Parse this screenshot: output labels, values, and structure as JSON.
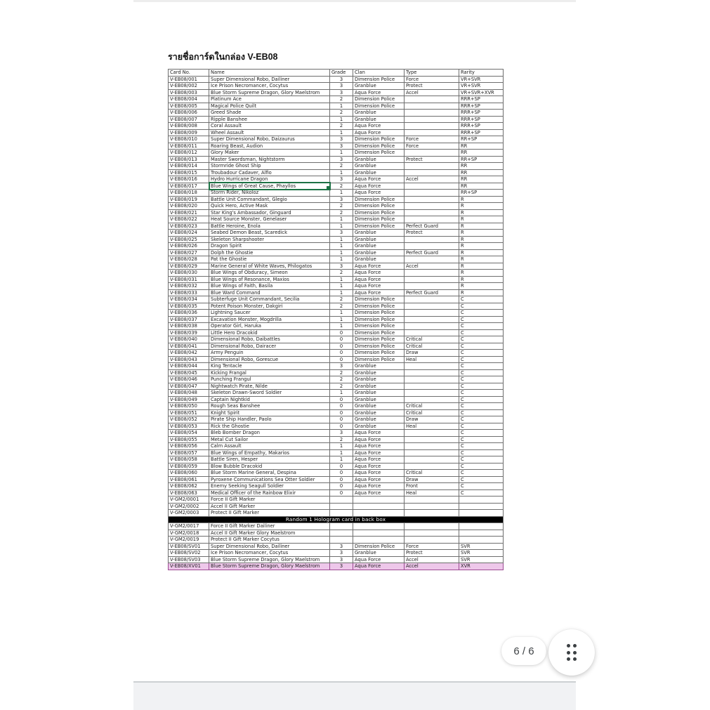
{
  "viewer": {
    "page_indicator": "6 / 6",
    "bottom_gap_color": "#f1f2f4"
  },
  "document": {
    "title": "รายชื่อการ์ดในกล่อง V-EB08",
    "table": {
      "headers": [
        "Card No.",
        "Name",
        "Grade",
        "Clan",
        "Type",
        "Rarity"
      ],
      "selection_color": "#1d7245",
      "highlight_color": "#eec7ea",
      "separator_label": "Random 1 Hologram card in back box",
      "rows": [
        {
          "no": "V-EB08/001",
          "name": "Super Dimensional Robo, Dailiner",
          "grade": "3",
          "clan": "Dimension Police",
          "type": "Force",
          "rarity": "VR+SVR"
        },
        {
          "no": "V-EB08/002",
          "name": "Ice Prison Necromancer, Cocytus",
          "grade": "3",
          "clan": "Granblue",
          "type": "Protect",
          "rarity": "VR+SVR"
        },
        {
          "no": "V-EB08/003",
          "name": "Blue Storm Supreme Dragon, Glory Maelstrom",
          "grade": "3",
          "clan": "Aqua Force",
          "type": "Accel",
          "rarity": "VR+SVR+XVR"
        },
        {
          "no": "V-EB08/004",
          "name": "Platinum Ace",
          "grade": "2",
          "clan": "Dimension Police",
          "type": "",
          "rarity": "RRR+SP"
        },
        {
          "no": "V-EB08/005",
          "name": "Magical Police Quilt",
          "grade": "1",
          "clan": "Dimension Police",
          "type": "",
          "rarity": "RRR+SP"
        },
        {
          "no": "V-EB08/006",
          "name": "Greed Shade",
          "grade": "2",
          "clan": "Granblue",
          "type": "",
          "rarity": "RRR+SP"
        },
        {
          "no": "V-EB08/007",
          "name": "Ripple Banshee",
          "grade": "1",
          "clan": "Granblue",
          "type": "",
          "rarity": "RRR+SP"
        },
        {
          "no": "V-EB08/008",
          "name": "Coral Assault",
          "grade": "2",
          "clan": "Aqua Force",
          "type": "",
          "rarity": "RRR+SP"
        },
        {
          "no": "V-EB08/009",
          "name": "Wheel Assault",
          "grade": "1",
          "clan": "Aqua Force",
          "type": "",
          "rarity": "RRR+SP"
        },
        {
          "no": "V-EB08/010",
          "name": "Super Dimensional Robo, Daizaurus",
          "grade": "3",
          "clan": "Dimension Police",
          "type": "Force",
          "rarity": "RR+SP"
        },
        {
          "no": "V-EB08/011",
          "name": "Roaring Beast, Audion",
          "grade": "3",
          "clan": "Dimension Police",
          "type": "Force",
          "rarity": "RR"
        },
        {
          "no": "V-EB08/012",
          "name": "Glory Maker",
          "grade": "1",
          "clan": "Dimension Police",
          "type": "",
          "rarity": "RR"
        },
        {
          "no": "V-EB08/013",
          "name": "Master Swordsman, Nightstorm",
          "grade": "3",
          "clan": "Granblue",
          "type": "Protect",
          "rarity": "RR+SP"
        },
        {
          "no": "V-EB08/014",
          "name": "Stormride Ghost Ship",
          "grade": "2",
          "clan": "Granblue",
          "type": "",
          "rarity": "RR"
        },
        {
          "no": "V-EB08/015",
          "name": "Troubadour Cadaver, Alfio",
          "grade": "1",
          "clan": "Granblue",
          "type": "",
          "rarity": "RR"
        },
        {
          "no": "V-EB08/016",
          "name": "Hydro Hurricane Dragon",
          "grade": "3",
          "clan": "Aqua Force",
          "type": "Accel",
          "rarity": "RR"
        },
        {
          "no": "V-EB08/017",
          "name": "Blue Wings of Great Cause, Phayllos",
          "grade": "2",
          "clan": "Aqua Force",
          "type": "",
          "rarity": "RR",
          "selected": true
        },
        {
          "no": "V-EB08/018",
          "name": "Storm Rider, Nikoloz",
          "grade": "1",
          "clan": "Aqua Force",
          "type": "",
          "rarity": "RR+SP"
        },
        {
          "no": "V-EB08/019",
          "name": "Battle Unit Commandant, Glegio",
          "grade": "3",
          "clan": "Dimension Police",
          "type": "",
          "rarity": "R"
        },
        {
          "no": "V-EB08/020",
          "name": "Quick Hero, Active Mask",
          "grade": "2",
          "clan": "Dimension Police",
          "type": "",
          "rarity": "R"
        },
        {
          "no": "V-EB08/021",
          "name": "Star King's Ambassador, Ginguard",
          "grade": "2",
          "clan": "Dimension Police",
          "type": "",
          "rarity": "R"
        },
        {
          "no": "V-EB08/022",
          "name": "Heat Source Monster, Genelaser",
          "grade": "1",
          "clan": "Dimension Police",
          "type": "",
          "rarity": "R"
        },
        {
          "no": "V-EB08/023",
          "name": "Battle Heroine, Enola",
          "grade": "1",
          "clan": "Dimension Police",
          "type": "Perfect Guard",
          "rarity": "R"
        },
        {
          "no": "V-EB08/024",
          "name": "Seabed Demon Beast, Scaredick",
          "grade": "3",
          "clan": "Granblue",
          "type": "Protect",
          "rarity": "R"
        },
        {
          "no": "V-EB08/025",
          "name": "Skeleton Sharpshooter",
          "grade": "1",
          "clan": "Granblue",
          "type": "",
          "rarity": "R"
        },
        {
          "no": "V-EB08/026",
          "name": "Dragon Spirit",
          "grade": "1",
          "clan": "Granblue",
          "type": "",
          "rarity": "R"
        },
        {
          "no": "V-EB08/027",
          "name": "Dolph the Ghostie",
          "grade": "1",
          "clan": "Granblue",
          "type": "Perfect Guard",
          "rarity": "R"
        },
        {
          "no": "V-EB08/028",
          "name": "Pat the Ghostie",
          "grade": "1",
          "clan": "Granblue",
          "type": "",
          "rarity": "R"
        },
        {
          "no": "V-EB08/029",
          "name": "Marine General of White Waves, Philogatos",
          "grade": "3",
          "clan": "Aqua Force",
          "type": "Accel",
          "rarity": "R"
        },
        {
          "no": "V-EB08/030",
          "name": "Blue Wings of Obduracy, Simeon",
          "grade": "2",
          "clan": "Aqua Force",
          "type": "",
          "rarity": "R"
        },
        {
          "no": "V-EB08/031",
          "name": "Blue Wings of Resonance, Maxios",
          "grade": "1",
          "clan": "Aqua Force",
          "type": "",
          "rarity": "R"
        },
        {
          "no": "V-EB08/032",
          "name": "Blue Wings of Faith, Basila",
          "grade": "1",
          "clan": "Aqua Force",
          "type": "",
          "rarity": "R"
        },
        {
          "no": "V-EB08/033",
          "name": "Blue Ward Command",
          "grade": "1",
          "clan": "Aqua Force",
          "type": "Perfect Guard",
          "rarity": "R"
        },
        {
          "no": "V-EB08/034",
          "name": "Subterfuge Unit Commandant, Secilia",
          "grade": "2",
          "clan": "Dimension Police",
          "type": "",
          "rarity": "C"
        },
        {
          "no": "V-EB08/035",
          "name": "Potent Poison Monster, Dakgiri",
          "grade": "2",
          "clan": "Dimension Police",
          "type": "",
          "rarity": "C"
        },
        {
          "no": "V-EB08/036",
          "name": "Lightning Saucer",
          "grade": "1",
          "clan": "Dimension Police",
          "type": "",
          "rarity": "C"
        },
        {
          "no": "V-EB08/037",
          "name": "Excavation Monster, Mogdrilla",
          "grade": "1",
          "clan": "Dimension Police",
          "type": "",
          "rarity": "C"
        },
        {
          "no": "V-EB08/038",
          "name": "Operator Girl, Haruka",
          "grade": "1",
          "clan": "Dimension Police",
          "type": "",
          "rarity": "C"
        },
        {
          "no": "V-EB08/039",
          "name": "Little Hero Dracokid",
          "grade": "0",
          "clan": "Dimension Police",
          "type": "",
          "rarity": "C"
        },
        {
          "no": "V-EB08/040",
          "name": "Dimensional Robo, Daibattles",
          "grade": "0",
          "clan": "Dimension Police",
          "type": "Critical",
          "rarity": "C"
        },
        {
          "no": "V-EB08/041",
          "name": "Dimensional Robo, Dairacer",
          "grade": "0",
          "clan": "Dimension Police",
          "type": "Critical",
          "rarity": "C"
        },
        {
          "no": "V-EB08/042",
          "name": "Army Penguin",
          "grade": "0",
          "clan": "Dimension Police",
          "type": "Draw",
          "rarity": "C"
        },
        {
          "no": "V-EB08/043",
          "name": "Dimensional Robo, Gorescue",
          "grade": "0",
          "clan": "Dimension Police",
          "type": "Heal",
          "rarity": "C"
        },
        {
          "no": "V-EB08/044",
          "name": "King Tentacle",
          "grade": "3",
          "clan": "Granblue",
          "type": "",
          "rarity": "C"
        },
        {
          "no": "V-EB08/045",
          "name": "Kicking Frangal",
          "grade": "2",
          "clan": "Granblue",
          "type": "",
          "rarity": "C"
        },
        {
          "no": "V-EB08/046",
          "name": "Punching Frangul",
          "grade": "2",
          "clan": "Granblue",
          "type": "",
          "rarity": "C"
        },
        {
          "no": "V-EB08/047",
          "name": "Nightwatch Pirate, Nilde",
          "grade": "2",
          "clan": "Granblue",
          "type": "",
          "rarity": "C"
        },
        {
          "no": "V-EB08/048",
          "name": "Skeleton Drawn-Sword Soldier",
          "grade": "1",
          "clan": "Granblue",
          "type": "",
          "rarity": "C"
        },
        {
          "no": "V-EB08/049",
          "name": "Captain Nightkid",
          "grade": "0",
          "clan": "Granblue",
          "type": "",
          "rarity": "C"
        },
        {
          "no": "V-EB08/050",
          "name": "Rough Seas Banshee",
          "grade": "0",
          "clan": "Granblue",
          "type": "Critical",
          "rarity": "C"
        },
        {
          "no": "V-EB08/051",
          "name": "Knight Spirit",
          "grade": "0",
          "clan": "Granblue",
          "type": "Critical",
          "rarity": "C"
        },
        {
          "no": "V-EB08/052",
          "name": "Pirate Ship Handler, Paolo",
          "grade": "0",
          "clan": "Granblue",
          "type": "Draw",
          "rarity": "C"
        },
        {
          "no": "V-EB08/053",
          "name": "Rick the Ghostie",
          "grade": "0",
          "clan": "Granblue",
          "type": "Heal",
          "rarity": "C"
        },
        {
          "no": "V-EB08/054",
          "name": "Bleb Bomber Dragon",
          "grade": "3",
          "clan": "Aqua Force",
          "type": "",
          "rarity": "C"
        },
        {
          "no": "V-EB08/055",
          "name": "Metal Cut Sailor",
          "grade": "2",
          "clan": "Aqua Force",
          "type": "",
          "rarity": "C"
        },
        {
          "no": "V-EB08/056",
          "name": "Calm Assault",
          "grade": "1",
          "clan": "Aqua Force",
          "type": "",
          "rarity": "C"
        },
        {
          "no": "V-EB08/057",
          "name": "Blue Wings of Empathy, Makarios",
          "grade": "1",
          "clan": "Aqua Force",
          "type": "",
          "rarity": "C"
        },
        {
          "no": "V-EB08/058",
          "name": "Battle Siren, Hesper",
          "grade": "1",
          "clan": "Aqua Force",
          "type": "",
          "rarity": "C"
        },
        {
          "no": "V-EB08/059",
          "name": "Blow Bubble Dracokid",
          "grade": "0",
          "clan": "Aqua Force",
          "type": "",
          "rarity": "C"
        },
        {
          "no": "V-EB08/060",
          "name": "Blue Storm Marine General, Despina",
          "grade": "0",
          "clan": "Aqua Force",
          "type": "Critical",
          "rarity": "C"
        },
        {
          "no": "V-EB08/061",
          "name": "Pyroxene Communications Sea Otter Soldier",
          "grade": "0",
          "clan": "Aqua Force",
          "type": "Draw",
          "rarity": "C"
        },
        {
          "no": "V-EB08/062",
          "name": "Enemy Seeking Seagull Soldier",
          "grade": "0",
          "clan": "Aqua Force",
          "type": "Front",
          "rarity": "C"
        },
        {
          "no": "V-EB08/063",
          "name": "Medical Officer of the Rainbow Elixir",
          "grade": "0",
          "clan": "Aqua Force",
          "type": "Heal",
          "rarity": "C"
        },
        {
          "no": "V-GM2/0001",
          "name": "Force II Gift Marker",
          "grade": "",
          "clan": "",
          "type": "",
          "rarity": ""
        },
        {
          "no": "V-GM2/0002",
          "name": "Accel II Gift Marker",
          "grade": "",
          "clan": "",
          "type": "",
          "rarity": ""
        },
        {
          "no": "V-GM2/0003",
          "name": "Protect II Gift Marker",
          "grade": "",
          "clan": "",
          "type": "",
          "rarity": ""
        },
        {
          "separator": "Random 1 Hologram card in back box"
        },
        {
          "no": "V-GM2/0017",
          "name": "Force II Gift Marker Dailiner",
          "grade": "",
          "clan": "",
          "type": "",
          "rarity": ""
        },
        {
          "no": "V-GM2/0018",
          "name": "Accel II Gift Marker Glory Maelstrom",
          "grade": "",
          "clan": "",
          "type": "",
          "rarity": ""
        },
        {
          "no": "V-GM2/0019",
          "name": "Protect II Gift Marker Cocytus",
          "grade": "",
          "clan": "",
          "type": "",
          "rarity": ""
        },
        {
          "no": "V-EB08/SV01",
          "name": "Super Dimensional Robo, Dailiner",
          "grade": "3",
          "clan": "Dimension Police",
          "type": "Force",
          "rarity": "SVR"
        },
        {
          "no": "V-EB08/SV02",
          "name": "Ice Prison Necromancer, Cocytus",
          "grade": "3",
          "clan": "Granblue",
          "type": "Protect",
          "rarity": "SVR"
        },
        {
          "no": "V-EB08/SV03",
          "name": "Blue Storm Supreme Dragon, Glory Maelstrom",
          "grade": "3",
          "clan": "Aqua Force",
          "type": "Accel",
          "rarity": "SVR"
        },
        {
          "no": "V-EB08/XV01",
          "name": "Blue Storm Supreme Dragon, Glory Maelstrom",
          "grade": "3",
          "clan": "Aqua Force",
          "type": "Accel",
          "rarity": "XVR",
          "highlight": true
        }
      ]
    }
  }
}
